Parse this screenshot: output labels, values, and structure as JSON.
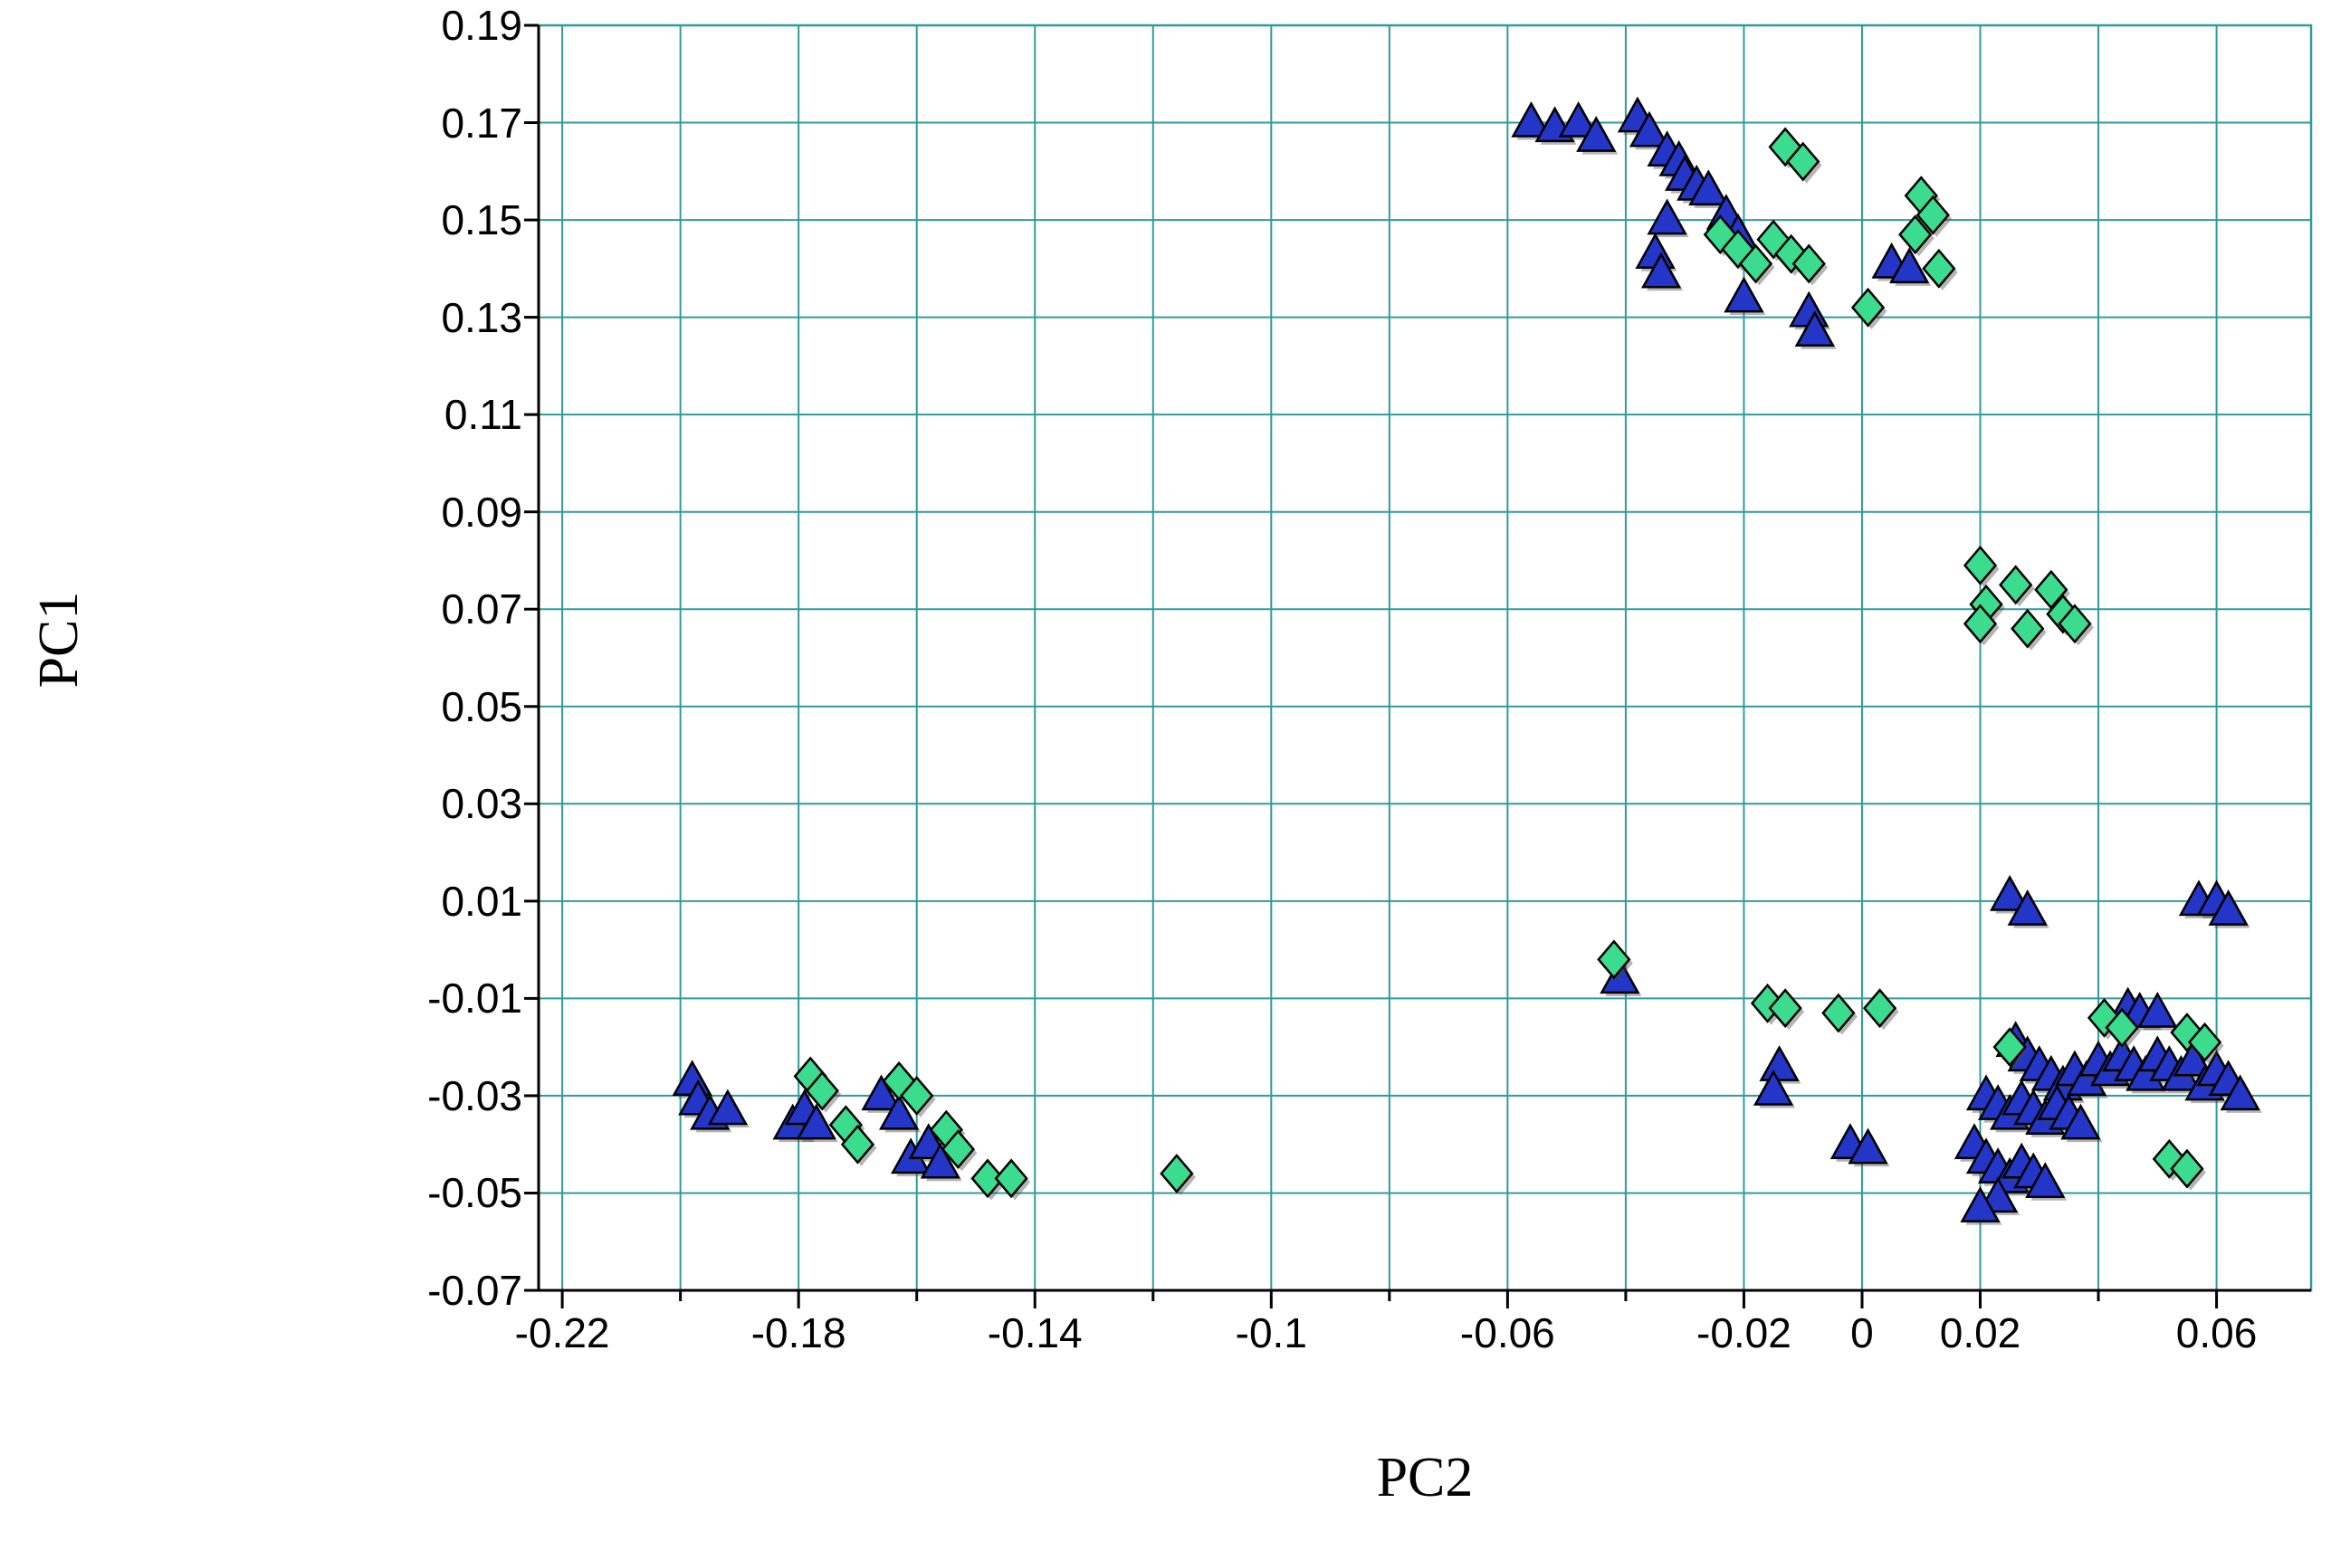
{
  "chart_data": {
    "type": "scatter",
    "title": "",
    "xlabel": "PC2",
    "ylabel": "PC1",
    "xlim": [
      -0.224,
      0.076
    ],
    "ylim": [
      -0.07,
      0.19
    ],
    "grid": true,
    "grid_color": "#2F9B9B",
    "axis_color": "#000000",
    "legend": "none",
    "x_gridlines": [
      -0.22,
      -0.2,
      -0.18,
      -0.16,
      -0.14,
      -0.12,
      -0.1,
      -0.08,
      -0.06,
      -0.04,
      -0.02,
      0,
      0.02,
      0.04,
      0.06
    ],
    "y_gridlines": [
      -0.05,
      -0.03,
      -0.01,
      0.01,
      0.03,
      0.05,
      0.07,
      0.09,
      0.11,
      0.13,
      0.15,
      0.17
    ],
    "x_ticks": [
      {
        "value": -0.22,
        "label": "-0.22"
      },
      {
        "value": -0.18,
        "label": "-0.18"
      },
      {
        "value": -0.14,
        "label": "-0.14"
      },
      {
        "value": -0.1,
        "label": "-0.1"
      },
      {
        "value": -0.06,
        "label": "-0.06"
      },
      {
        "value": -0.02,
        "label": "-0.02"
      },
      {
        "value": 0,
        "label": "0"
      },
      {
        "value": 0.02,
        "label": "0.02"
      },
      {
        "value": 0.06,
        "label": "0.06"
      }
    ],
    "y_ticks": [
      {
        "value": 0.19,
        "label": "0.19"
      },
      {
        "value": 0.17,
        "label": "0.17"
      },
      {
        "value": 0.15,
        "label": "0.15"
      },
      {
        "value": 0.13,
        "label": "0.13"
      },
      {
        "value": 0.11,
        "label": "0.11"
      },
      {
        "value": 0.09,
        "label": "0.09"
      },
      {
        "value": 0.07,
        "label": "0.07"
      },
      {
        "value": 0.05,
        "label": "0.05"
      },
      {
        "value": 0.03,
        "label": "0.03"
      },
      {
        "value": 0.01,
        "label": "0.01"
      },
      {
        "value": -0.01,
        "label": "-0.01"
      },
      {
        "value": -0.03,
        "label": "-0.03"
      },
      {
        "value": -0.05,
        "label": "-0.05"
      },
      {
        "value": -0.07,
        "label": "-0.07"
      }
    ],
    "series": [
      {
        "name": "blue-triangles",
        "marker": "triangle",
        "color": "#2436C8",
        "outline": "#000000",
        "points": [
          [
            -0.056,
            0.17
          ],
          [
            -0.052,
            0.169
          ],
          [
            -0.048,
            0.17
          ],
          [
            -0.045,
            0.167
          ],
          [
            -0.038,
            0.171
          ],
          [
            -0.036,
            0.168
          ],
          [
            -0.033,
            0.164
          ],
          [
            -0.031,
            0.162
          ],
          [
            -0.03,
            0.159
          ],
          [
            -0.028,
            0.157
          ],
          [
            -0.033,
            0.15
          ],
          [
            -0.035,
            0.143
          ],
          [
            -0.034,
            0.139
          ],
          [
            -0.026,
            0.156
          ],
          [
            -0.023,
            0.151
          ],
          [
            -0.021,
            0.147
          ],
          [
            -0.02,
            0.134
          ],
          [
            -0.009,
            0.131
          ],
          [
            -0.008,
            0.127
          ],
          [
            0.005,
            0.141
          ],
          [
            0.008,
            0.14
          ],
          [
            -0.041,
            -0.006
          ],
          [
            -0.198,
            -0.027
          ],
          [
            -0.197,
            -0.031
          ],
          [
            -0.195,
            -0.034
          ],
          [
            -0.192,
            -0.033
          ],
          [
            -0.181,
            -0.036
          ],
          [
            -0.179,
            -0.033
          ],
          [
            -0.177,
            -0.036
          ],
          [
            -0.166,
            -0.03
          ],
          [
            -0.163,
            -0.034
          ],
          [
            -0.161,
            -0.043
          ],
          [
            -0.158,
            -0.04
          ],
          [
            -0.156,
            -0.044
          ],
          [
            -0.014,
            -0.024
          ],
          [
            -0.015,
            -0.029
          ],
          [
            -0.002,
            -0.04
          ],
          [
            0.001,
            -0.041
          ],
          [
            0.025,
            0.011
          ],
          [
            0.028,
            0.008
          ],
          [
            0.057,
            0.01
          ],
          [
            0.06,
            0.01
          ],
          [
            0.062,
            0.008
          ],
          [
            0.045,
            -0.012
          ],
          [
            0.047,
            -0.013
          ],
          [
            0.05,
            -0.013
          ],
          [
            0.026,
            -0.019
          ],
          [
            0.028,
            -0.022
          ],
          [
            0.03,
            -0.024
          ],
          [
            0.032,
            -0.026
          ],
          [
            0.034,
            -0.028
          ],
          [
            0.036,
            -0.025
          ],
          [
            0.038,
            -0.027
          ],
          [
            0.04,
            -0.023
          ],
          [
            0.042,
            -0.025
          ],
          [
            0.044,
            -0.022
          ],
          [
            0.046,
            -0.024
          ],
          [
            0.048,
            -0.026
          ],
          [
            0.05,
            -0.022
          ],
          [
            0.052,
            -0.024
          ],
          [
            0.054,
            -0.026
          ],
          [
            0.056,
            -0.023
          ],
          [
            0.058,
            -0.028
          ],
          [
            0.06,
            -0.025
          ],
          [
            0.062,
            -0.027
          ],
          [
            0.064,
            -0.03
          ],
          [
            0.021,
            -0.03
          ],
          [
            0.023,
            -0.032
          ],
          [
            0.025,
            -0.034
          ],
          [
            0.027,
            -0.031
          ],
          [
            0.029,
            -0.033
          ],
          [
            0.031,
            -0.035
          ],
          [
            0.033,
            -0.032
          ],
          [
            0.035,
            -0.034
          ],
          [
            0.037,
            -0.036
          ],
          [
            0.019,
            -0.04
          ],
          [
            0.021,
            -0.043
          ],
          [
            0.023,
            -0.045
          ],
          [
            0.025,
            -0.047
          ],
          [
            0.027,
            -0.044
          ],
          [
            0.029,
            -0.046
          ],
          [
            0.031,
            -0.048
          ],
          [
            0.023,
            -0.051
          ],
          [
            0.02,
            -0.053
          ]
        ]
      },
      {
        "name": "green-diamonds",
        "marker": "diamond",
        "color": "#3BDC8E",
        "outline": "#000000",
        "points": [
          [
            -0.013,
            0.165
          ],
          [
            -0.01,
            0.162
          ],
          [
            -0.024,
            0.147
          ],
          [
            -0.021,
            0.144
          ],
          [
            -0.018,
            0.141
          ],
          [
            -0.015,
            0.146
          ],
          [
            -0.012,
            0.143
          ],
          [
            -0.009,
            0.141
          ],
          [
            0.01,
            0.155
          ],
          [
            0.012,
            0.151
          ],
          [
            0.009,
            0.147
          ],
          [
            0.001,
            0.132
          ],
          [
            0.013,
            0.14
          ],
          [
            0.02,
            0.079
          ],
          [
            0.021,
            0.071
          ],
          [
            0.02,
            0.067
          ],
          [
            0.026,
            0.075
          ],
          [
            0.028,
            0.066
          ],
          [
            0.032,
            0.074
          ],
          [
            0.034,
            0.069
          ],
          [
            0.036,
            0.067
          ],
          [
            -0.042,
            -0.002
          ],
          [
            -0.178,
            -0.026
          ],
          [
            -0.176,
            -0.029
          ],
          [
            -0.172,
            -0.036
          ],
          [
            -0.17,
            -0.04
          ],
          [
            -0.163,
            -0.027
          ],
          [
            -0.16,
            -0.03
          ],
          [
            -0.155,
            -0.037
          ],
          [
            -0.153,
            -0.041
          ],
          [
            -0.148,
            -0.047
          ],
          [
            -0.144,
            -0.047
          ],
          [
            -0.116,
            -0.046
          ],
          [
            -0.016,
            -0.011
          ],
          [
            -0.013,
            -0.012
          ],
          [
            -0.004,
            -0.013
          ],
          [
            0.003,
            -0.012
          ],
          [
            0.025,
            -0.02
          ],
          [
            0.041,
            -0.014
          ],
          [
            0.044,
            -0.016
          ],
          [
            0.055,
            -0.017
          ],
          [
            0.058,
            -0.019
          ],
          [
            0.052,
            -0.043
          ],
          [
            0.055,
            -0.045
          ]
        ]
      }
    ]
  }
}
